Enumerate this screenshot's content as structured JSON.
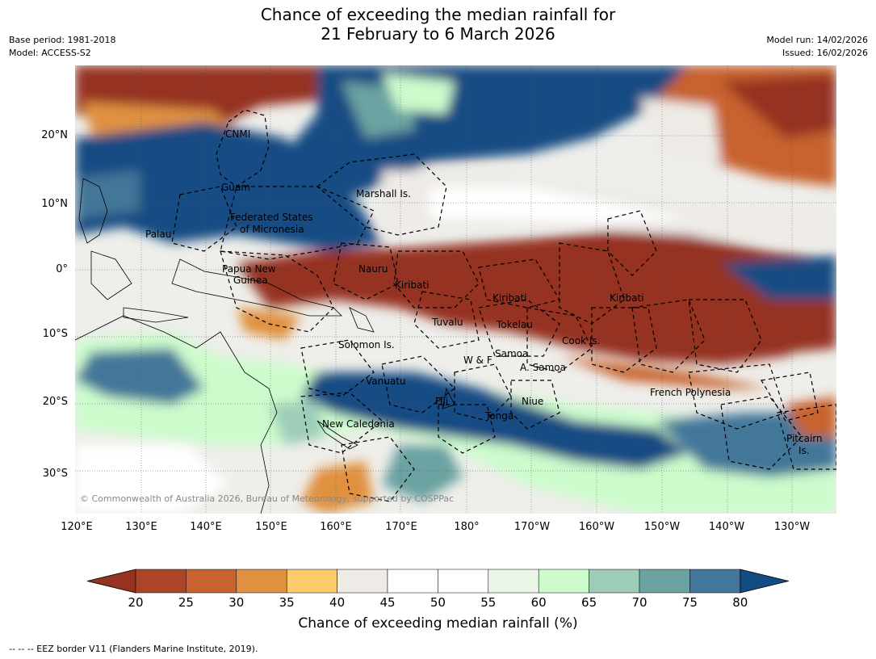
{
  "header": {
    "title_line1": "Chance of exceeding the median rainfall for",
    "title_line2": "21 February to 6 March 2026",
    "base_period": "Base period: 1981-2018",
    "model": "Model: ACCESS-S2",
    "model_run": "Model run: 14/02/2026",
    "issued": "Issued: 16/02/2026"
  },
  "map": {
    "copyright": "© Commonwealth of Australia 2026, Bureau of Meteorology, supported by COSPPac",
    "lat_labels": [
      "20°N",
      "10°N",
      "0°",
      "10°S",
      "20°S",
      "30°S"
    ],
    "lon_labels": [
      "120°E",
      "130°E",
      "140°E",
      "150°E",
      "160°E",
      "170°E",
      "180°",
      "170°W",
      "160°W",
      "150°W",
      "140°W",
      "130°W"
    ],
    "regions": [
      {
        "name": "CNMI"
      },
      {
        "name": "Guam"
      },
      {
        "name": "Marshall Is."
      },
      {
        "name": "Federated States"
      },
      {
        "name": "of Micronesia"
      },
      {
        "name": "Palau"
      },
      {
        "name": "Papua New"
      },
      {
        "name": "Guinea"
      },
      {
        "name": "Nauru"
      },
      {
        "name": "Kiribati"
      },
      {
        "name": "Kiribati"
      },
      {
        "name": "Kiribati"
      },
      {
        "name": "Tuvalu"
      },
      {
        "name": "Tokelau"
      },
      {
        "name": "Cook Is."
      },
      {
        "name": "Solomon Is."
      },
      {
        "name": "W & F"
      },
      {
        "name": "Samoa"
      },
      {
        "name": "A. Samoa"
      },
      {
        "name": "Vanuatu"
      },
      {
        "name": "Fiji"
      },
      {
        "name": "Niue"
      },
      {
        "name": "Tonga"
      },
      {
        "name": "New Caledonia"
      },
      {
        "name": "French Polynesia"
      },
      {
        "name": "Pitcairn"
      },
      {
        "name": "Is."
      }
    ]
  },
  "colorbar": {
    "title": "Chance of exceeding median rainfall (%)",
    "labels": [
      "20",
      "25",
      "30",
      "35",
      "40",
      "45",
      "50",
      "55",
      "60",
      "65",
      "70",
      "75",
      "80"
    ],
    "colors": [
      "#953320",
      "#ab4526",
      "#c8622e",
      "#e0913f",
      "#fdcb6b",
      "#eeebe6",
      "#ffffff",
      "#ffffff",
      "#e8f6e8",
      "#ccfccc",
      "#9dcdb8",
      "#6aa3a1",
      "#437799",
      "#134b83"
    ]
  },
  "footer": {
    "text": "--  --  -- EEZ border V11 (Flanders Marine Institute, 2019)."
  }
}
